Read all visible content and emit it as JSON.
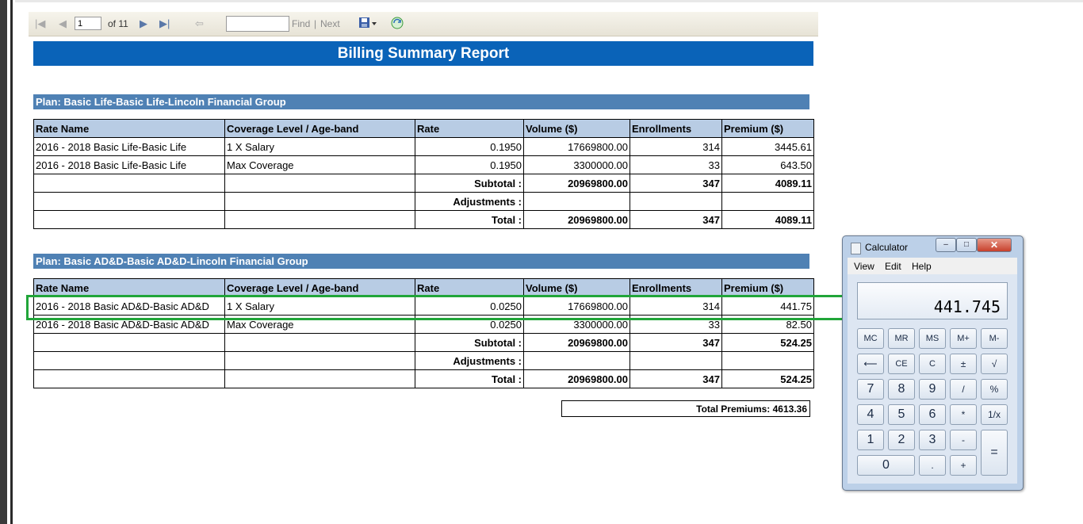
{
  "toolbar": {
    "page_current": "1",
    "page_of": "of 11",
    "find_label": "Find",
    "separator": "|",
    "next_label": "Next",
    "icons": [
      "first-page-icon",
      "prev-page-icon",
      "next-page-icon",
      "last-page-icon",
      "back-icon",
      "export-icon",
      "refresh-icon"
    ]
  },
  "report": {
    "title": "Billing Summary Report",
    "columns": [
      "Rate Name",
      "Coverage Level / Age-band",
      "Rate",
      "Volume ($)",
      "Enrollments",
      "Premium ($)"
    ],
    "plan1": {
      "title": "Plan: Basic Life-Basic Life-Lincoln Financial Group",
      "rows": [
        [
          "2016 - 2018 Basic Life-Basic Life",
          "1 X Salary",
          "0.1950",
          "17669800.00",
          "314",
          "3445.61"
        ],
        [
          "2016 - 2018 Basic Life-Basic Life",
          "Max Coverage",
          "0.1950",
          "3300000.00",
          "33",
          "643.50"
        ]
      ],
      "subtotal": {
        "label": "Subtotal :",
        "volume": "20969800.00",
        "enrollments": "347",
        "premium": "4089.11"
      },
      "adjustments": {
        "label": "Adjustments :"
      },
      "total": {
        "label": "Total :",
        "volume": "20969800.00",
        "enrollments": "347",
        "premium": "4089.11"
      }
    },
    "plan2": {
      "title": "Plan: Basic AD&D-Basic AD&D-Lincoln Financial Group",
      "rows": [
        [
          "2016 - 2018 Basic AD&D-Basic AD&D",
          "1 X Salary",
          "0.0250",
          "17669800.00",
          "314",
          "441.75"
        ],
        [
          "2016 - 2018 Basic AD&D-Basic AD&D",
          "Max Coverage",
          "0.0250",
          "3300000.00",
          "33",
          "82.50"
        ]
      ],
      "subtotal": {
        "label": "Subtotal :",
        "volume": "20969800.00",
        "enrollments": "347",
        "premium": "524.25"
      },
      "adjustments": {
        "label": "Adjustments :"
      },
      "total": {
        "label": "Total :",
        "volume": "20969800.00",
        "enrollments": "347",
        "premium": "524.25"
      }
    },
    "total_premiums": "Total Premiums: 4613.36"
  },
  "calculator": {
    "title": "Calculator",
    "menu": [
      "View",
      "Edit",
      "Help"
    ],
    "display": "441.745",
    "window_buttons": {
      "minimize": "–",
      "maximize": "□",
      "close": "✕"
    },
    "keys": {
      "mc": "MC",
      "mr": "MR",
      "ms": "MS",
      "mplus": "M+",
      "mminus": "M-",
      "back": "⟵",
      "ce": "CE",
      "c": "C",
      "pm": "±",
      "sqrt": "√",
      "k7": "7",
      "k8": "8",
      "k9": "9",
      "div": "/",
      "pct": "%",
      "k4": "4",
      "k5": "5",
      "k6": "6",
      "mul": "*",
      "inv": "1/x",
      "k1": "1",
      "k2": "2",
      "k3": "3",
      "sub": "-",
      "eq": "=",
      "k0": "0",
      "dot": ".",
      "add": "+"
    }
  },
  "colors": {
    "title_bar": "#0a63b8",
    "plan_bar": "#4f81b4",
    "header": "#b8cce4",
    "highlight": "#21a539"
  }
}
